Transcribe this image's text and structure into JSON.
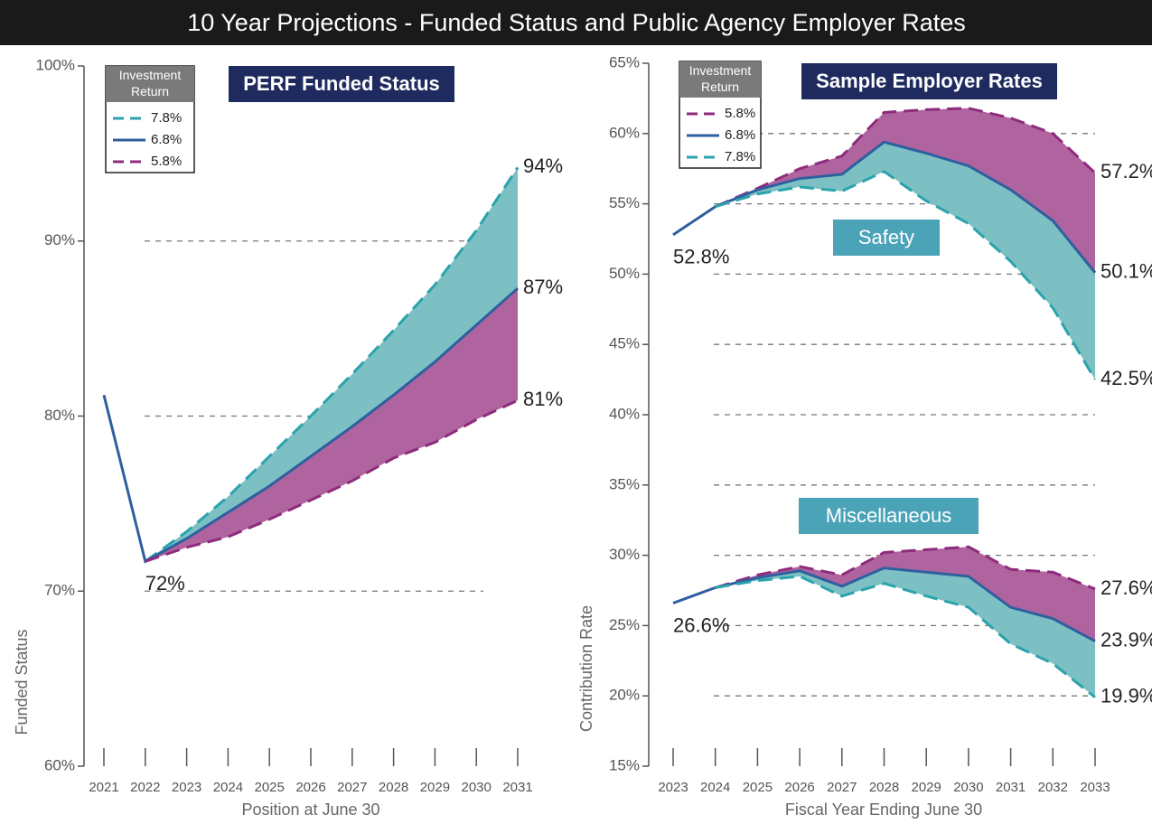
{
  "title": "10 Year Projections - Funded Status and Public Agency Employer Rates",
  "chart_data": [
    {
      "type": "line",
      "title": "PERF Funded Status",
      "xlabel": "Position at June 30",
      "ylabel": "Funded Status",
      "legend_title": "Investment Return",
      "categories": [
        "2021",
        "2022",
        "2023",
        "2024",
        "2025",
        "2026",
        "2027",
        "2028",
        "2029",
        "2030",
        "2031"
      ],
      "ylim": [
        60,
        100
      ],
      "yticks": [
        {
          "value": 60,
          "label": "60%"
        },
        {
          "value": 70,
          "label": "70%"
        },
        {
          "value": 80,
          "label": "80%"
        },
        {
          "value": 90,
          "label": "90%"
        },
        {
          "value": 100,
          "label": "100%"
        }
      ],
      "grid": true,
      "series": [
        {
          "name": "7.8%",
          "color": "#2aa3ad",
          "fill": "#7cc0c4",
          "dashed": true,
          "values": [
            null,
            71.7,
            73.4,
            75.4,
            77.7,
            80.0,
            82.4,
            84.9,
            87.5,
            90.6,
            94.2
          ],
          "value_labels": [
            null,
            null,
            null,
            null,
            null,
            null,
            null,
            null,
            null,
            null,
            "94%"
          ]
        },
        {
          "name": "6.8%",
          "color": "#2f5f9e",
          "dashed": false,
          "values": [
            81.2,
            71.7,
            73.0,
            74.5,
            76.0,
            77.7,
            79.4,
            81.2,
            83.1,
            85.2,
            87.3
          ],
          "value_labels": [
            null,
            "72%",
            null,
            null,
            null,
            null,
            null,
            null,
            null,
            null,
            "87%"
          ]
        },
        {
          "name": "5.8%",
          "color": "#8e2b7c",
          "fill": "#b0649f",
          "dashed": true,
          "values": [
            null,
            71.7,
            72.5,
            73.1,
            74.1,
            75.2,
            76.3,
            77.6,
            78.5,
            79.8,
            80.9
          ],
          "value_labels": [
            null,
            null,
            null,
            null,
            null,
            null,
            null,
            null,
            null,
            null,
            "81%"
          ]
        }
      ]
    },
    {
      "type": "line",
      "title": "Sample Employer Rates",
      "xlabel": "Fiscal Year Ending June 30",
      "ylabel": "Contribution Rate",
      "legend_title": "Investment Return",
      "categories": [
        "2023",
        "2024",
        "2025",
        "2026",
        "2027",
        "2028",
        "2029",
        "2030",
        "2031",
        "2032",
        "2033"
      ],
      "ylim": [
        15,
        65
      ],
      "yticks": [
        {
          "value": 15,
          "label": "15%"
        },
        {
          "value": 20,
          "label": "20%"
        },
        {
          "value": 25,
          "label": "25%"
        },
        {
          "value": 30,
          "label": "30%"
        },
        {
          "value": 35,
          "label": "35%"
        },
        {
          "value": 40,
          "label": "40%"
        },
        {
          "value": 45,
          "label": "45%"
        },
        {
          "value": 50,
          "label": "50%"
        },
        {
          "value": 55,
          "label": "55%"
        },
        {
          "value": 60,
          "label": "60%"
        },
        {
          "value": 65,
          "label": "65%"
        }
      ],
      "grid": true,
      "groups": [
        {
          "name": "Safety",
          "series": [
            {
              "name": "5.8%",
              "color": "#8e2b7c",
              "fill": "#b0649f",
              "dashed": true,
              "values": [
                null,
                54.8,
                56.1,
                57.5,
                58.4,
                61.5,
                61.7,
                61.8,
                61.1,
                60.0,
                57.2
              ],
              "value_labels": [
                null,
                null,
                null,
                null,
                null,
                null,
                null,
                null,
                null,
                null,
                "57.2%"
              ]
            },
            {
              "name": "6.8%",
              "color": "#2f5f9e",
              "dashed": false,
              "values": [
                52.8,
                54.8,
                56.0,
                56.8,
                57.1,
                59.4,
                58.6,
                57.7,
                56.0,
                53.8,
                50.1
              ],
              "value_labels": [
                "52.8%",
                null,
                null,
                null,
                null,
                null,
                null,
                null,
                null,
                null,
                "50.1%"
              ]
            },
            {
              "name": "7.8%",
              "color": "#2aa3ad",
              "fill": "#7cc0c4",
              "dashed": true,
              "values": [
                null,
                54.8,
                55.7,
                56.2,
                55.9,
                57.3,
                55.2,
                53.6,
                50.9,
                47.6,
                42.5
              ],
              "value_labels": [
                null,
                null,
                null,
                null,
                null,
                null,
                null,
                null,
                null,
                null,
                "42.5%"
              ]
            }
          ]
        },
        {
          "name": "Miscellaneous",
          "series": [
            {
              "name": "5.8%",
              "color": "#8e2b7c",
              "fill": "#b0649f",
              "dashed": true,
              "values": [
                null,
                27.7,
                28.6,
                29.2,
                28.6,
                30.2,
                30.4,
                30.6,
                29.0,
                28.8,
                27.6
              ],
              "value_labels": [
                null,
                null,
                null,
                null,
                null,
                null,
                null,
                null,
                null,
                null,
                "27.6%"
              ]
            },
            {
              "name": "6.8%",
              "color": "#2f5f9e",
              "dashed": false,
              "values": [
                26.6,
                27.7,
                28.4,
                28.9,
                27.8,
                29.1,
                28.8,
                28.5,
                26.3,
                25.5,
                23.9
              ],
              "value_labels": [
                "26.6%",
                null,
                null,
                null,
                null,
                null,
                null,
                null,
                null,
                null,
                "23.9%"
              ]
            },
            {
              "name": "7.8%",
              "color": "#2aa3ad",
              "fill": "#7cc0c4",
              "dashed": true,
              "values": [
                null,
                27.7,
                28.2,
                28.5,
                27.1,
                28.0,
                27.1,
                26.3,
                23.7,
                22.3,
                19.9
              ],
              "value_labels": [
                null,
                null,
                null,
                null,
                null,
                null,
                null,
                null,
                null,
                null,
                "19.9%"
              ]
            }
          ]
        }
      ]
    }
  ]
}
